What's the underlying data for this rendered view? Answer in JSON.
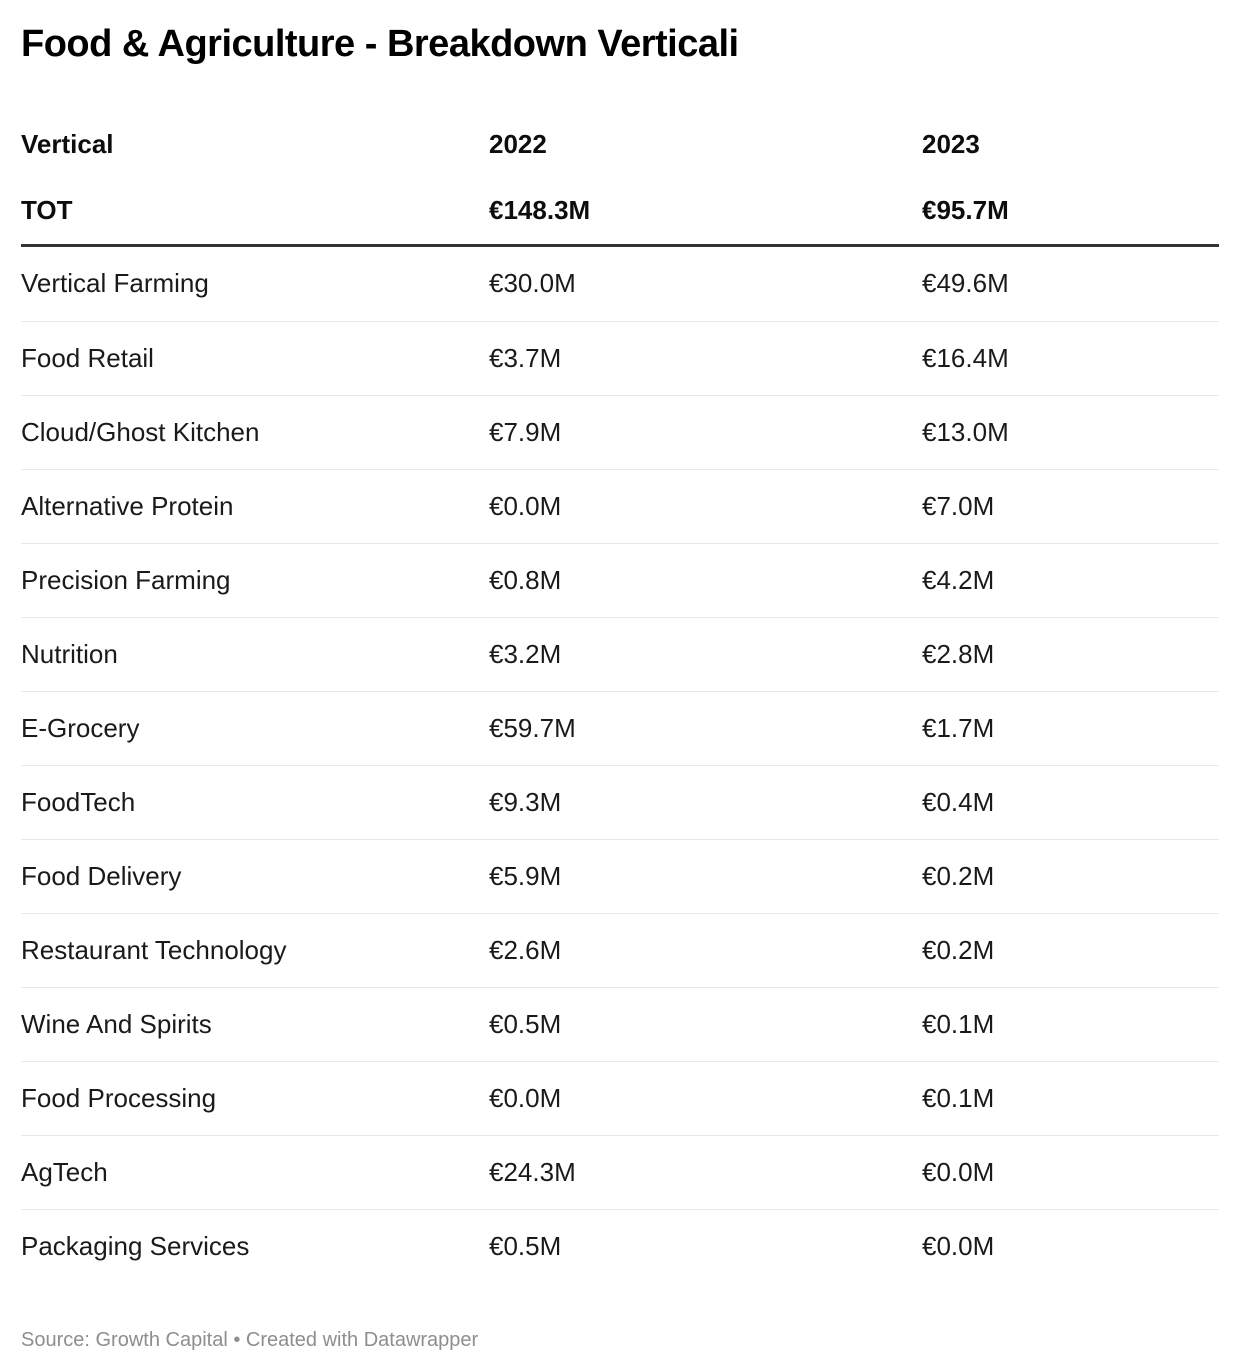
{
  "title": "Food & Agriculture - Breakdown Verticali",
  "chart_data": {
    "type": "table",
    "title": "Food & Agriculture - Breakdown Verticali",
    "columns": [
      "Vertical",
      "2022",
      "2023"
    ],
    "total": {
      "label": "TOT",
      "y2022": "€148.3M",
      "y2023": "€95.7M"
    },
    "rows": [
      {
        "vertical": "Vertical Farming",
        "y2022": "€30.0M",
        "y2023": "€49.6M"
      },
      {
        "vertical": "Food Retail",
        "y2022": "€3.7M",
        "y2023": "€16.4M"
      },
      {
        "vertical": "Cloud/Ghost Kitchen",
        "y2022": "€7.9M",
        "y2023": "€13.0M"
      },
      {
        "vertical": "Alternative Protein",
        "y2022": "€0.0M",
        "y2023": "€7.0M"
      },
      {
        "vertical": "Precision Farming",
        "y2022": "€0.8M",
        "y2023": "€4.2M"
      },
      {
        "vertical": "Nutrition",
        "y2022": "€3.2M",
        "y2023": "€2.8M"
      },
      {
        "vertical": "E-Grocery",
        "y2022": "€59.7M",
        "y2023": "€1.7M"
      },
      {
        "vertical": "FoodTech",
        "y2022": "€9.3M",
        "y2023": "€0.4M"
      },
      {
        "vertical": "Food Delivery",
        "y2022": "€5.9M",
        "y2023": "€0.2M"
      },
      {
        "vertical": "Restaurant Technology",
        "y2022": "€2.6M",
        "y2023": "€0.2M"
      },
      {
        "vertical": "Wine And Spirits",
        "y2022": "€0.5M",
        "y2023": "€0.1M"
      },
      {
        "vertical": "Food Processing",
        "y2022": "€0.0M",
        "y2023": "€0.1M"
      },
      {
        "vertical": "AgTech",
        "y2022": "€24.3M",
        "y2023": "€0.0M"
      },
      {
        "vertical": "Packaging Services",
        "y2022": "€0.5M",
        "y2023": "€0.0M"
      }
    ],
    "units": "EUR millions",
    "layout": {
      "grid": "horizontal row separators",
      "header_rule": "thick dark line below TOT row"
    }
  },
  "footer": {
    "text": "Source: Growth Capital • Created with Datawrapper"
  },
  "colors": {
    "background": "#ffffff",
    "title_text": "#000000",
    "body_text": "#1a1a1a",
    "header_rule": "#333333",
    "row_separator": "#e8e8e8",
    "footer_text": "#8e8e8e"
  }
}
